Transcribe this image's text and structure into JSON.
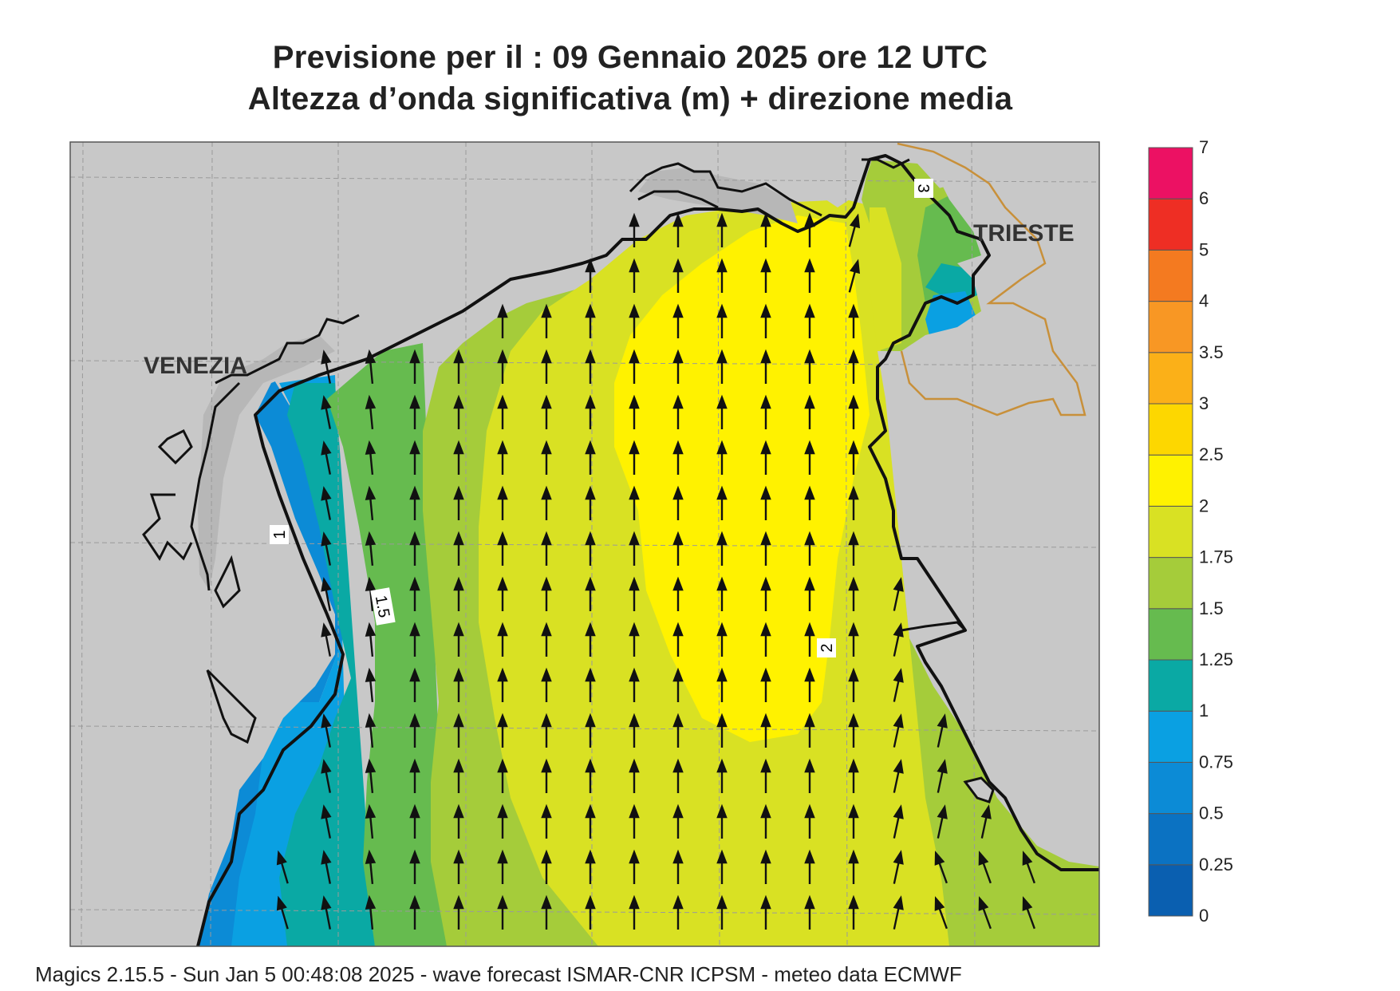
{
  "header": {
    "title_line1": "Previsione per il  :  09  Gennaio  2025   ore 12 UTC",
    "title_line2": "Altezza d’onda significativa (m) + direzione media"
  },
  "map": {
    "city_labels": [
      "VENEZIA",
      "TRIESTE"
    ],
    "contour_labels": [
      "1",
      "1.5",
      "2",
      "3"
    ],
    "arrow_direction": "north (mostly), turning north-east near the north-east coast and north-west near the west coast",
    "colors": {
      "land": "#c8c8c8",
      "coast": "#111111",
      "border": "#c8903a",
      "grid": "#9a9a9a"
    }
  },
  "legend": {
    "classes": [
      {
        "from": 0,
        "to": 0.25,
        "color": "#0a5fb0"
      },
      {
        "from": 0.25,
        "to": 0.5,
        "color": "#0b72c2"
      },
      {
        "from": 0.5,
        "to": 0.75,
        "color": "#0c8bd6"
      },
      {
        "from": 0.75,
        "to": 1,
        "color": "#0aa0e2"
      },
      {
        "from": 1,
        "to": 1.25,
        "color": "#0aa9a4"
      },
      {
        "from": 1.25,
        "to": 1.5,
        "color": "#66bb4f"
      },
      {
        "from": 1.5,
        "to": 1.75,
        "color": "#a5cc3a"
      },
      {
        "from": 1.75,
        "to": 2,
        "color": "#d9e123"
      },
      {
        "from": 2,
        "to": 2.5,
        "color": "#fff200"
      },
      {
        "from": 2.5,
        "to": 3,
        "color": "#fdd700"
      },
      {
        "from": 3,
        "to": 3.5,
        "color": "#fbb018"
      },
      {
        "from": 3.5,
        "to": 4,
        "color": "#f89724"
      },
      {
        "from": 4,
        "to": 5,
        "color": "#f47a20"
      },
      {
        "from": 5,
        "to": 6,
        "color": "#ee2e24"
      },
      {
        "from": 6,
        "to": 7,
        "color": "#ec1163"
      }
    ],
    "tick_labels": [
      "0",
      "0.25",
      "0.5",
      "0.75",
      "1",
      "1.25",
      "1.5",
      "1.75",
      "2",
      "2.5",
      "3",
      "3.5",
      "4",
      "5",
      "6",
      "7"
    ]
  },
  "footer": {
    "text": "Magics 2.15.5 - Sun Jan  5 00:48:08 2025 - wave forecast  ISMAR-CNR  ICPSM - meteo data    ECMWF"
  }
}
